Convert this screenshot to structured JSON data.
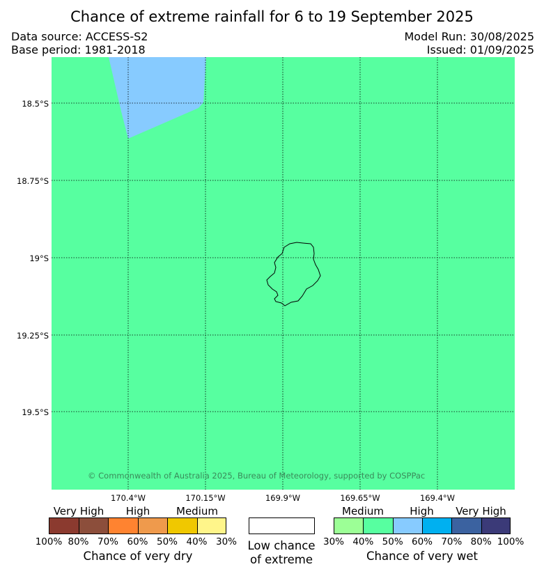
{
  "title": "Chance of extreme rainfall for 6 to 19 September 2025",
  "data_source": "Data source: ACCESS-S2",
  "base_period": "Base period: 1981-2018",
  "model_run": "Model Run: 30/08/2025",
  "issued": "Issued: 01/09/2025",
  "copyright": "© Commonwealth of Australia 2025, Bureau of Meteorology, supported by COSPPac",
  "map": {
    "background_color": "#57FFA0",
    "region_high_color": "#87CBFF",
    "island_outline_color": "#000000",
    "latitude_labels": [
      "18.5°S",
      "18.75°S",
      "19°S",
      "19.25°S",
      "19.5°S"
    ],
    "longitude_labels": [
      "170.4°W",
      "170.15°W",
      "169.9°W",
      "169.65°W",
      "169.4°W"
    ]
  },
  "legend": {
    "dry": {
      "categories": [
        "Very High",
        "High",
        "Medium"
      ],
      "percentages": [
        "100%",
        "80%",
        "70%",
        "60%",
        "50%",
        "40%",
        "30%"
      ],
      "colors": [
        "#8B3A2F",
        "#8C4E3B",
        "#FF8330",
        "#EF9A4C",
        "#F0C800",
        "#FFF58A"
      ],
      "title": "Chance of very dry"
    },
    "low": {
      "line1": "Low chance",
      "line2": "of extreme",
      "color": "#FFFFFF"
    },
    "wet": {
      "categories": [
        "Medium",
        "High",
        "Very High"
      ],
      "percentages": [
        "30%",
        "40%",
        "50%",
        "60%",
        "70%",
        "80%",
        "100%"
      ],
      "colors": [
        "#9CFF96",
        "#57FFA0",
        "#87CBFF",
        "#00B0F0",
        "#3B62A0",
        "#3B3A78"
      ],
      "title": "Chance of very wet"
    }
  }
}
